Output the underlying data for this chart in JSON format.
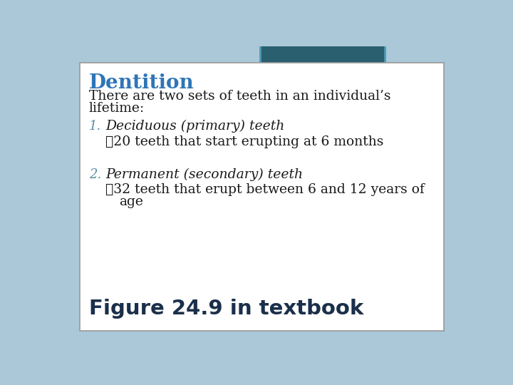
{
  "title": "Dentition",
  "title_color": "#2E75B6",
  "background_color": "#aac8d8",
  "card_color": "#ffffff",
  "body_line1": "There are two sets of teeth in an individual’s",
  "body_line2": "lifetime:",
  "item1_heading": "Deciduous (primary) teeth",
  "item1_bullet": "➖20 teeth that start erupting at 6 months",
  "item2_heading": "Permanent (secondary) teeth",
  "item2_bullet_line1": "➖32 teeth that erupt between 6 and 12 years of",
  "item2_bullet_line2": "age",
  "footer": "Figure 24.9 in textbook",
  "footer_color": "#1a2f4a",
  "tab_color": "#2a5f70",
  "tab_border_color": "#4a9ab0",
  "text_color": "#1a1a1a",
  "number_color": "#5a8fa8",
  "bullet_color": "#4a8a9a",
  "card_border_color": "#999999"
}
